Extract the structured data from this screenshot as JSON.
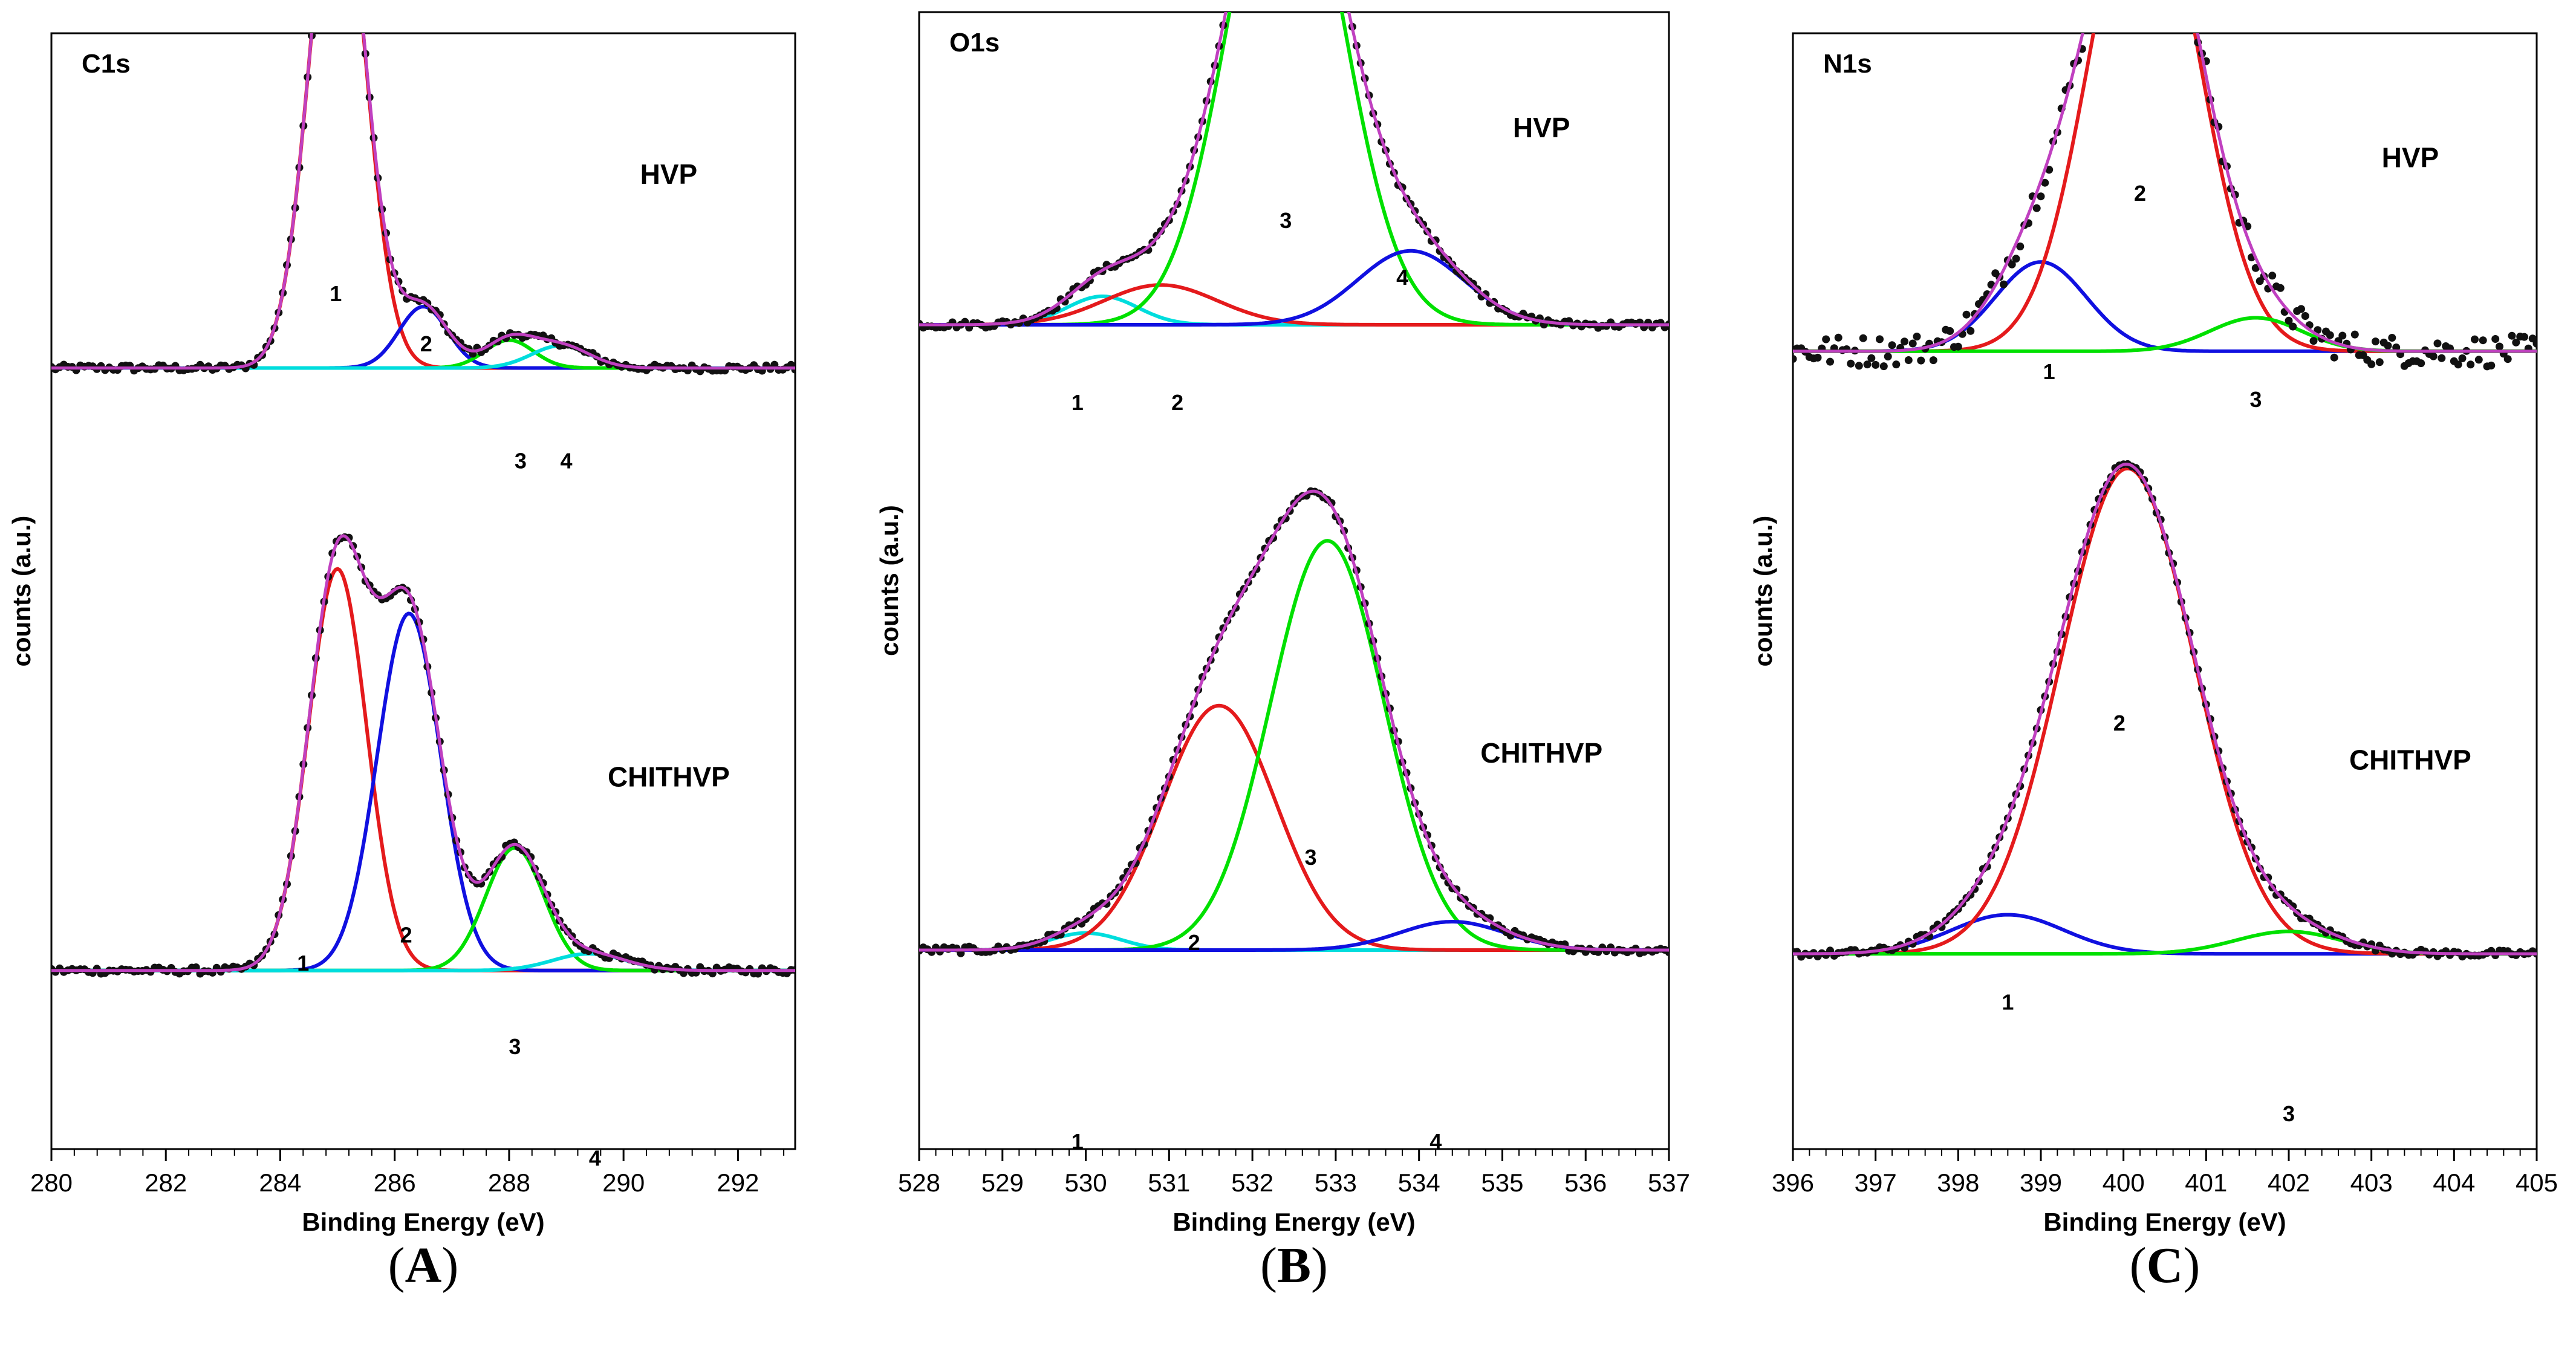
{
  "chart_data": [
    {
      "id": "A",
      "type": "line",
      "caption": "A",
      "region": "C1s",
      "xlabel": "Binding Energy (eV)",
      "ylabel": "counts (a.u.)",
      "xlim": [
        280,
        293
      ],
      "xticks": [
        280,
        282,
        284,
        286,
        288,
        290,
        292
      ],
      "xtick_labels": [
        "280",
        "282",
        "284",
        "286",
        "288",
        "290",
        "292"
      ],
      "spectra": [
        {
          "sample": "HVP",
          "baseline": 0.6,
          "envelope_color": "#c040c0",
          "peaks": [
            {
              "label": "1",
              "center": 285.0,
              "height": 0.92,
              "fwhm": 1.15,
              "color": "#e41a1c"
            },
            {
              "label": "2",
              "center": 286.5,
              "height": 0.11,
              "fwhm": 1.0,
              "color": "#1010e0"
            },
            {
              "label": "3",
              "center": 288.0,
              "height": 0.05,
              "fwhm": 1.0,
              "color": "#00e000"
            },
            {
              "label": "4",
              "center": 288.9,
              "height": 0.04,
              "fwhm": 1.2,
              "color": "#00dddd"
            }
          ],
          "peak_label_positions": [
            [
              284.97,
              0.88
            ],
            [
              286.55,
              0.97
            ],
            [
              288.2,
              1.18
            ],
            [
              289.0,
              1.18
            ]
          ]
        },
        {
          "sample": "CHITHVP",
          "baseline": 1.68,
          "envelope_color": "#c040c0",
          "peaks": [
            {
              "label": "1",
              "center": 285.0,
              "height": 0.72,
              "fwhm": 1.2,
              "color": "#e41a1c"
            },
            {
              "label": "2",
              "center": 286.25,
              "height": 0.64,
              "fwhm": 1.3,
              "color": "#1010e0"
            },
            {
              "label": "3",
              "center": 288.1,
              "height": 0.22,
              "fwhm": 1.2,
              "color": "#00e000"
            },
            {
              "label": "4",
              "center": 289.4,
              "height": 0.03,
              "fwhm": 1.5,
              "color": "#00dddd"
            }
          ],
          "peak_label_positions": [
            [
              284.4,
              1.0
            ],
            [
              286.2,
              0.95
            ],
            [
              288.1,
              1.15
            ],
            [
              289.5,
              1.35
            ]
          ]
        }
      ]
    },
    {
      "id": "B",
      "type": "line",
      "caption": "B",
      "region": "O1s",
      "xlabel": "Binding Energy (eV)",
      "ylabel": "counts (a.u.)",
      "xlim": [
        528,
        537
      ],
      "xticks": [
        528,
        529,
        530,
        531,
        532,
        533,
        534,
        535,
        536,
        537
      ],
      "xtick_labels": [
        "528",
        "529",
        "530",
        "531",
        "532",
        "533",
        "534",
        "535",
        "536",
        "537"
      ],
      "spectra": [
        {
          "sample": "HVP",
          "baseline": 0.55,
          "envelope_color": "#c040c0",
          "peaks": [
            {
              "label": "1",
              "center": 530.2,
              "height": 0.05,
              "fwhm": 1.0,
              "color": "#00dddd"
            },
            {
              "label": "2",
              "center": 530.9,
              "height": 0.07,
              "fwhm": 1.6,
              "color": "#e41a1c"
            },
            {
              "label": "3",
              "center": 532.4,
              "height": 0.9,
              "fwhm": 1.6,
              "color": "#00e000"
            },
            {
              "label": "4",
              "center": 533.9,
              "height": 0.13,
              "fwhm": 1.5,
              "color": "#1010e0"
            }
          ],
          "peak_label_positions": [
            [
              529.9,
              1.15
            ],
            [
              531.1,
              1.15
            ],
            [
              532.4,
              0.83
            ],
            [
              533.8,
              0.93
            ]
          ]
        },
        {
          "sample": "CHITHVP",
          "baseline": 1.65,
          "envelope_color": "#c040c0",
          "peaks": [
            {
              "label": "1",
              "center": 530.0,
              "height": 0.03,
              "fwhm": 1.0,
              "color": "#00dddd"
            },
            {
              "label": "2",
              "center": 531.6,
              "height": 0.43,
              "fwhm": 1.6,
              "color": "#e41a1c"
            },
            {
              "label": "3",
              "center": 532.9,
              "height": 0.72,
              "fwhm": 1.6,
              "color": "#00e000"
            },
            {
              "label": "4",
              "center": 534.4,
              "height": 0.05,
              "fwhm": 1.5,
              "color": "#1010e0"
            }
          ],
          "peak_label_positions": [
            [
              529.9,
              1.35
            ],
            [
              531.3,
              1.0
            ],
            [
              532.7,
              0.85
            ],
            [
              534.2,
              1.35
            ]
          ]
        }
      ]
    },
    {
      "id": "C",
      "type": "line",
      "caption": "C",
      "region": "N1s",
      "xlabel": "Binding Energy (eV)",
      "ylabel": "counts (a.u.)",
      "xlim": [
        396,
        405
      ],
      "xticks": [
        396,
        397,
        398,
        399,
        400,
        401,
        402,
        403,
        404,
        405
      ],
      "xtick_labels": [
        "396",
        "397",
        "398",
        "399",
        "400",
        "401",
        "402",
        "403",
        "404",
        "405"
      ],
      "spectra": [
        {
          "sample": "HVP",
          "baseline": 0.57,
          "envelope_color": "#c040c0",
          "peaks": [
            {
              "label": "1",
              "center": 399.0,
              "height": 0.16,
              "fwhm": 1.3,
              "color": "#1010e0"
            },
            {
              "label": "2",
              "center": 400.25,
              "height": 0.88,
              "fwhm": 1.55,
              "color": "#e41a1c"
            },
            {
              "label": "3",
              "center": 401.6,
              "height": 0.06,
              "fwhm": 1.3,
              "color": "#00e000"
            }
          ],
          "peak_label_positions": [
            [
              399.1,
              1.05
            ],
            [
              400.2,
              0.73
            ],
            [
              401.6,
              1.1
            ]
          ]
        },
        {
          "sample": "CHITHVP",
          "baseline": 1.65,
          "envelope_color": "#c040c0",
          "peaks": [
            {
              "label": "1",
              "center": 398.6,
              "height": 0.07,
              "fwhm": 1.6,
              "color": "#1010e0"
            },
            {
              "label": "2",
              "center": 400.05,
              "height": 0.87,
              "fwhm": 1.9,
              "color": "#e41a1c"
            },
            {
              "label": "3",
              "center": 402.0,
              "height": 0.04,
              "fwhm": 1.5,
              "color": "#00e000"
            }
          ],
          "peak_label_positions": [
            [
              398.6,
              1.1
            ],
            [
              399.95,
              0.6
            ],
            [
              402.0,
              1.3
            ]
          ]
        }
      ]
    }
  ]
}
